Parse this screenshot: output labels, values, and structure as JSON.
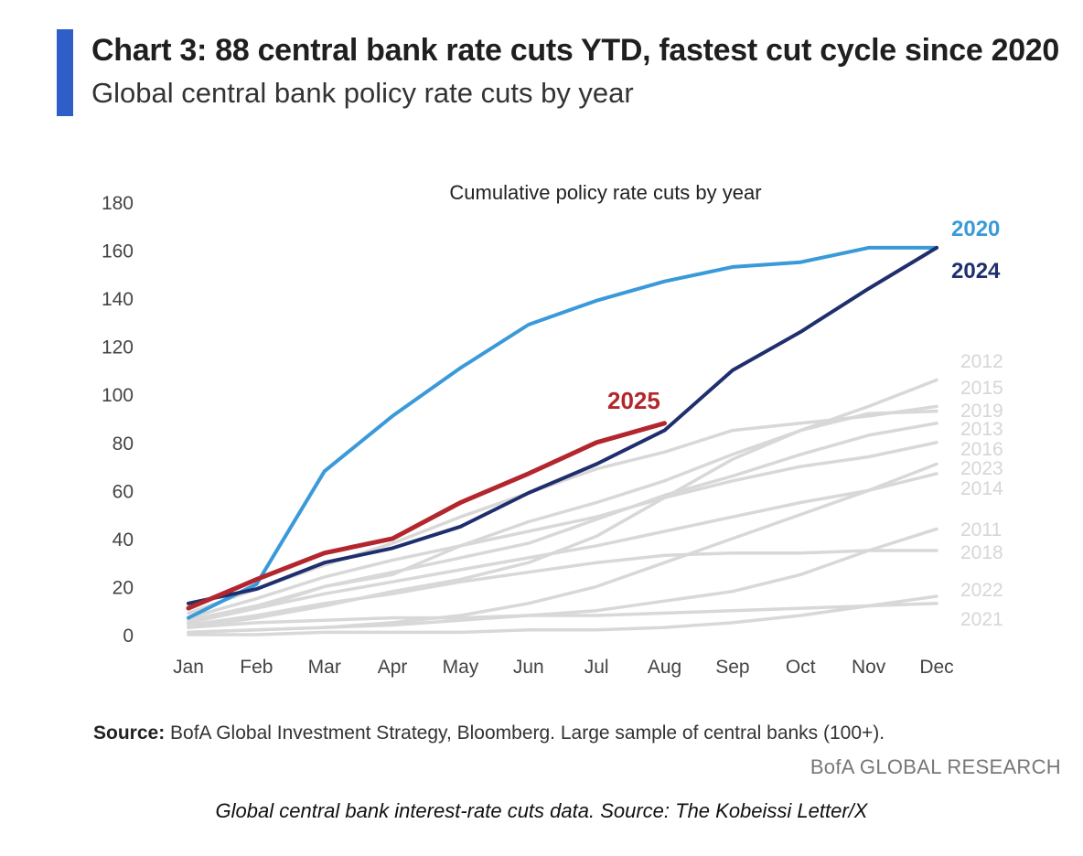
{
  "header": {
    "title": "Chart 3: 88 central bank rate cuts YTD, fastest cut cycle since 2020",
    "subtitle": "Global central bank policy rate cuts by year",
    "accent_color": "#2f5ec8"
  },
  "footer": {
    "source_label": "Source:",
    "source_text": " BofA Global Investment Strategy, Bloomberg. Large sample of central banks (100+).",
    "brand": "BofA GLOBAL RESEARCH",
    "caption": "Global central bank interest-rate cuts data. Source: The Kobeissi Letter/X"
  },
  "chart_data": {
    "type": "line",
    "title": "Cumulative policy rate cuts by year",
    "xlabel": "",
    "ylabel": "",
    "categories": [
      "Jan",
      "Feb",
      "Mar",
      "Apr",
      "May",
      "Jun",
      "Jul",
      "Aug",
      "Sep",
      "Oct",
      "Nov",
      "Dec"
    ],
    "ylim": [
      0,
      180
    ],
    "yticks": [
      0,
      20,
      40,
      60,
      80,
      100,
      120,
      140,
      160,
      180
    ],
    "grid": false,
    "highlight_series": [
      {
        "name": "2020",
        "color": "#3a9ad9",
        "values": [
          7,
          21,
          68,
          91,
          111,
          129,
          139,
          147,
          153,
          155,
          161,
          161
        ]
      },
      {
        "name": "2024",
        "color": "#1f2f6e",
        "values": [
          13,
          19,
          30,
          36,
          45,
          59,
          71,
          85,
          110,
          126,
          144,
          161
        ]
      },
      {
        "name": "2025",
        "color": "#b3262d",
        "values": [
          11,
          23,
          34,
          40,
          55,
          67,
          80,
          88
        ]
      }
    ],
    "background_series": [
      {
        "name": "2012",
        "color": "#d8d8d8",
        "values": [
          5,
          11,
          20,
          25,
          37,
          47,
          55,
          64,
          75,
          85,
          95,
          106
        ]
      },
      {
        "name": "2015",
        "color": "#d8d8d8",
        "values": [
          9,
          19,
          29,
          38,
          49,
          59,
          69,
          76,
          85,
          88,
          91,
          95
        ]
      },
      {
        "name": "2019",
        "color": "#d8d8d8",
        "values": [
          3,
          7,
          12,
          18,
          23,
          30,
          41,
          57,
          73,
          85,
          92,
          93
        ]
      },
      {
        "name": "2013",
        "color": "#d8d8d8",
        "values": [
          6,
          12,
          20,
          26,
          32,
          38,
          48,
          58,
          66,
          75,
          83,
          88
        ]
      },
      {
        "name": "2016",
        "color": "#d8d8d8",
        "values": [
          7,
          15,
          24,
          31,
          37,
          43,
          49,
          57,
          64,
          70,
          74,
          80
        ]
      },
      {
        "name": "2023",
        "color": "#d8d8d8",
        "values": [
          1,
          2,
          3,
          5,
          8,
          13,
          20,
          30,
          40,
          50,
          60,
          71
        ]
      },
      {
        "name": "2014",
        "color": "#d8d8d8",
        "values": [
          5,
          11,
          17,
          22,
          27,
          32,
          37,
          43,
          49,
          55,
          60,
          67
        ]
      },
      {
        "name": "2011",
        "color": "#d8d8d8",
        "values": [
          1,
          2,
          3,
          4,
          6,
          8,
          10,
          14,
          18,
          25,
          35,
          44
        ]
      },
      {
        "name": "2018",
        "color": "#d8d8d8",
        "values": [
          4,
          8,
          13,
          17,
          22,
          26,
          30,
          33,
          34,
          34,
          35,
          35
        ]
      },
      {
        "name": "2022",
        "color": "#d8d8d8",
        "values": [
          0,
          0,
          1,
          1,
          1,
          2,
          2,
          3,
          5,
          8,
          12,
          16
        ]
      },
      {
        "name": "2021",
        "color": "#d8d8d8",
        "values": [
          3,
          5,
          6,
          7,
          7,
          8,
          8,
          9,
          10,
          11,
          12,
          13
        ]
      }
    ]
  }
}
